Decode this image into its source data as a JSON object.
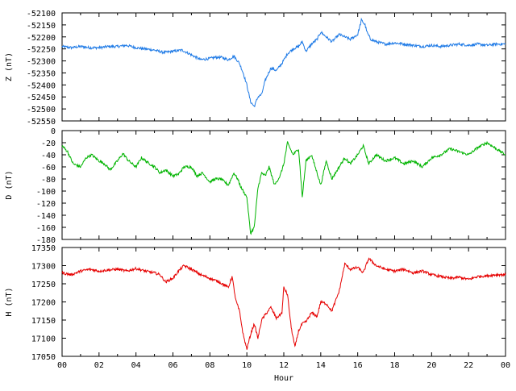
{
  "chart_data": {
    "type": "line",
    "xlabel": "Hour",
    "x_ticks": [
      "00",
      "02",
      "04",
      "06",
      "08",
      "10",
      "12",
      "14",
      "16",
      "18",
      "20",
      "22",
      "00"
    ],
    "xlim": [
      0,
      24
    ],
    "grid": false,
    "panels": [
      {
        "name": "Z",
        "ylabel": "Z (nT)",
        "color": "#1e7ae6",
        "ylim": [
          -52550,
          -52100
        ],
        "y_ticks": [
          "-52100",
          "-52150",
          "-52200",
          "-52250",
          "-52300",
          "-52350",
          "-52400",
          "-52450",
          "-52500",
          "-52550"
        ],
        "series": [
          {
            "x": [
              0,
              0.5,
              1,
              1.5,
              2,
              2.5,
              3,
              3.5,
              4,
              4.5,
              5,
              5.5,
              6,
              6.5,
              7,
              7.5,
              8,
              8.3,
              8.6,
              9,
              9.3,
              9.6,
              9.8,
              10,
              10.2,
              10.4,
              10.6,
              10.8,
              11,
              11.3,
              11.6,
              11.9,
              12.2,
              12.5,
              12.8,
              13,
              13.2,
              13.5,
              13.8,
              14,
              14.3,
              14.6,
              15,
              15.3,
              15.6,
              16,
              16.2,
              16.4,
              16.5,
              16.7,
              17,
              17.5,
              18,
              18.5,
              19,
              19.5,
              20,
              20.5,
              21,
              21.5,
              22,
              22.5,
              23,
              23.5,
              24
            ],
            "y": [
              -52240,
              -52245,
              -52240,
              -52245,
              -52245,
              -52240,
              -52240,
              -52235,
              -52245,
              -52250,
              -52255,
              -52265,
              -52260,
              -52255,
              -52275,
              -52295,
              -52290,
              -52285,
              -52285,
              -52295,
              -52280,
              -52310,
              -52350,
              -52400,
              -52470,
              -52490,
              -52450,
              -52440,
              -52380,
              -52330,
              -52340,
              -52310,
              -52270,
              -52250,
              -52240,
              -52220,
              -52260,
              -52230,
              -52210,
              -52180,
              -52200,
              -52220,
              -52190,
              -52200,
              -52210,
              -52190,
              -52130,
              -52150,
              -52180,
              -52210,
              -52220,
              -52230,
              -52225,
              -52230,
              -52235,
              -52240,
              -52235,
              -52240,
              -52235,
              -52230,
              -52235,
              -52230,
              -52235,
              -52230,
              -52230
            ]
          }
        ]
      },
      {
        "name": "D",
        "ylabel": "D (nT)",
        "color": "#00b400",
        "ylim": [
          -180,
          0
        ],
        "y_ticks": [
          "0",
          "-20",
          "-40",
          "-60",
          "-80",
          "-100",
          "-120",
          "-140",
          "-160",
          "-180"
        ],
        "series": [
          {
            "x": [
              0,
              0.3,
              0.6,
              1,
              1.3,
              1.6,
              2,
              2.3,
              2.6,
              3,
              3.3,
              3.6,
              4,
              4.3,
              4.6,
              5,
              5.3,
              5.6,
              6,
              6.3,
              6.6,
              7,
              7.3,
              7.6,
              8,
              8.3,
              8.6,
              9,
              9.3,
              9.5,
              9.7,
              10,
              10.2,
              10.4,
              10.6,
              10.8,
              11,
              11.2,
              11.5,
              11.8,
              12,
              12.2,
              12.5,
              12.8,
              13,
              13.2,
              13.5,
              13.8,
              14,
              14.3,
              14.6,
              15,
              15.3,
              15.6,
              16,
              16.3,
              16.6,
              17,
              17.5,
              18,
              18.5,
              19,
              19.5,
              20,
              20.5,
              21,
              21.5,
              22,
              22.5,
              23,
              23.5,
              24
            ],
            "y": [
              -25,
              -35,
              -55,
              -60,
              -45,
              -40,
              -50,
              -55,
              -65,
              -50,
              -38,
              -50,
              -60,
              -45,
              -52,
              -60,
              -70,
              -65,
              -75,
              -72,
              -60,
              -60,
              -75,
              -70,
              -85,
              -80,
              -80,
              -90,
              -70,
              -80,
              -95,
              -110,
              -170,
              -160,
              -95,
              -70,
              -75,
              -60,
              -90,
              -75,
              -55,
              -20,
              -40,
              -30,
              -110,
              -50,
              -40,
              -70,
              -90,
              -50,
              -80,
              -60,
              -45,
              -55,
              -40,
              -25,
              -55,
              -40,
              -50,
              -45,
              -55,
              -50,
              -60,
              -45,
              -40,
              -30,
              -35,
              -40,
              -28,
              -20,
              -30,
              -40
            ],
            "note": ""
          }
        ]
      },
      {
        "name": "H",
        "ylabel": "H (nT)",
        "color": "#e60000",
        "ylim": [
          17050,
          17350
        ],
        "y_ticks": [
          "17350",
          "17300",
          "17250",
          "17200",
          "17150",
          "17100",
          "17050"
        ],
        "series": [
          {
            "x": [
              0,
              0.5,
              1,
              1.5,
              2,
              2.5,
              3,
              3.5,
              4,
              4.5,
              5,
              5.3,
              5.6,
              6,
              6.3,
              6.6,
              7,
              7.5,
              8,
              8.5,
              9,
              9.2,
              9.4,
              9.6,
              9.8,
              10,
              10.2,
              10.4,
              10.6,
              10.8,
              11,
              11.3,
              11.6,
              11.9,
              12,
              12.2,
              12.4,
              12.6,
              12.8,
              13,
              13.2,
              13.5,
              13.8,
              14,
              14.3,
              14.6,
              15,
              15.3,
              15.6,
              16,
              16.3,
              16.6,
              17,
              17.5,
              18,
              18.5,
              19,
              19.5,
              20,
              20.5,
              21,
              21.5,
              22,
              22.5,
              23,
              23.5,
              24
            ],
            "y": [
              17280,
              17275,
              17285,
              17290,
              17285,
              17288,
              17290,
              17285,
              17292,
              17285,
              17280,
              17275,
              17255,
              17265,
              17285,
              17300,
              17290,
              17275,
              17265,
              17255,
              17240,
              17270,
              17205,
              17175,
              17110,
              17070,
              17110,
              17140,
              17100,
              17150,
              17165,
              17185,
              17155,
              17170,
              17240,
              17220,
              17130,
              17075,
              17120,
              17140,
              17145,
              17170,
              17160,
              17200,
              17195,
              17175,
              17230,
              17305,
              17290,
              17295,
              17280,
              17320,
              17300,
              17290,
              17285,
              17290,
              17280,
              17285,
              17275,
              17270,
              17265,
              17268,
              17262,
              17270,
              17272,
              17275,
              17275
            ]
          }
        ]
      }
    ]
  }
}
